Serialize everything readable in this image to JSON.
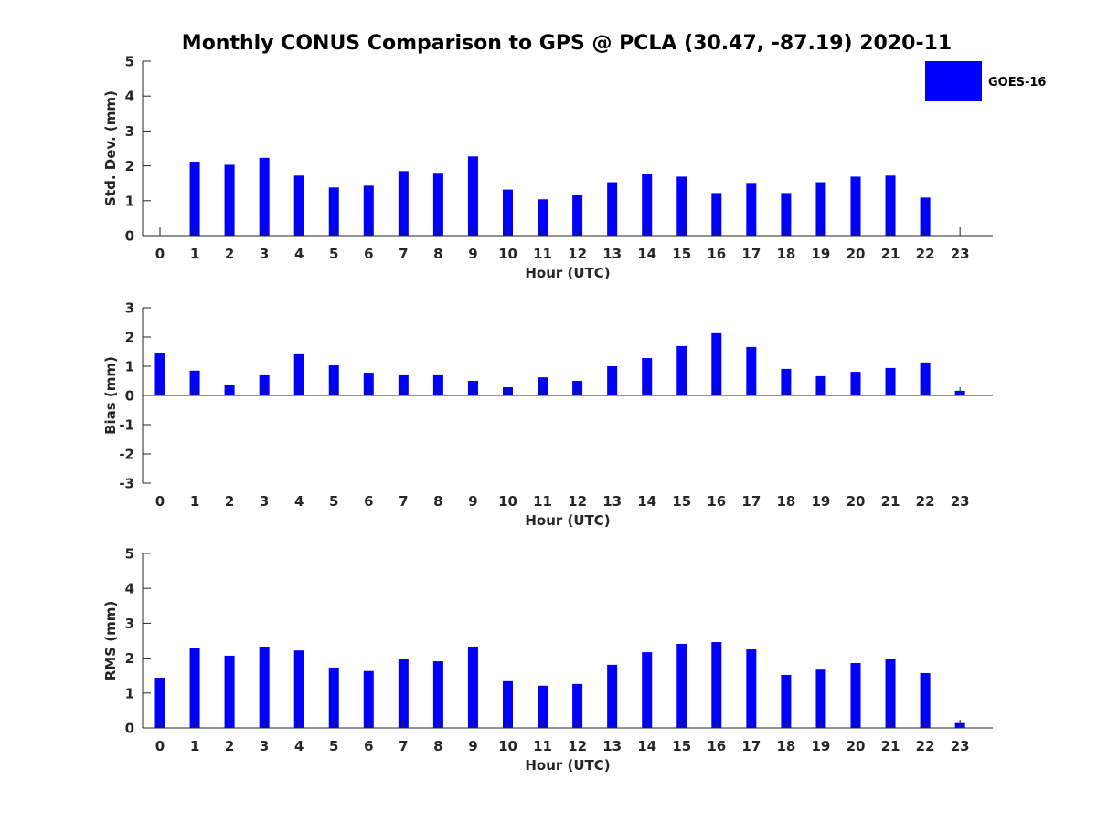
{
  "title": "Monthly CONUS Comparison to GPS @ PCLA (30.47, -87.19) 2020-11",
  "colors": {
    "bar": "#0000ff",
    "axis": "#262626"
  },
  "legend": {
    "label": "GOES-16",
    "placement": "top-right"
  },
  "chart_data": [
    {
      "type": "bar",
      "title": "Monthly CONUS Comparison to GPS @ PCLA (30.47, -87.19) 2020-11",
      "xlabel": "Hour (UTC)",
      "ylabel": "Std. Dev. (mm)",
      "ylim": [
        0,
        5
      ],
      "yticks": [
        0,
        1,
        2,
        3,
        4,
        5
      ],
      "categories": [
        "0",
        "1",
        "2",
        "3",
        "4",
        "5",
        "6",
        "7",
        "8",
        "9",
        "10",
        "11",
        "12",
        "13",
        "14",
        "15",
        "16",
        "17",
        "18",
        "19",
        "20",
        "21",
        "22",
        "23"
      ],
      "series": [
        {
          "name": "GOES-16",
          "values": [
            null,
            2.12,
            2.03,
            2.23,
            1.72,
            1.38,
            1.43,
            1.85,
            1.8,
            2.27,
            1.32,
            1.04,
            1.17,
            1.53,
            1.77,
            1.69,
            1.22,
            1.51,
            1.22,
            1.53,
            1.69,
            1.72,
            1.09,
            null
          ]
        }
      ]
    },
    {
      "type": "bar",
      "xlabel": "Hour (UTC)",
      "ylabel": "Bias (mm)",
      "ylim": [
        -3,
        3
      ],
      "yticks": [
        -3,
        -2,
        -1,
        0,
        1,
        2,
        3
      ],
      "categories": [
        "0",
        "1",
        "2",
        "3",
        "4",
        "5",
        "6",
        "7",
        "8",
        "9",
        "10",
        "11",
        "12",
        "13",
        "14",
        "15",
        "16",
        "17",
        "18",
        "19",
        "20",
        "21",
        "22",
        "23"
      ],
      "series": [
        {
          "name": "GOES-16",
          "values": [
            1.44,
            0.85,
            0.37,
            0.69,
            1.41,
            1.03,
            0.78,
            0.69,
            0.69,
            0.5,
            0.28,
            0.62,
            0.5,
            1.0,
            1.28,
            1.69,
            2.13,
            1.66,
            0.91,
            0.66,
            0.81,
            0.94,
            1.13,
            0.16
          ]
        }
      ]
    },
    {
      "type": "bar",
      "xlabel": "Hour (UTC)",
      "ylabel": "RMS (mm)",
      "ylim": [
        0,
        5
      ],
      "yticks": [
        0,
        1,
        2,
        3,
        4,
        5
      ],
      "categories": [
        "0",
        "1",
        "2",
        "3",
        "4",
        "5",
        "6",
        "7",
        "8",
        "9",
        "10",
        "11",
        "12",
        "13",
        "14",
        "15",
        "16",
        "17",
        "18",
        "19",
        "20",
        "21",
        "22",
        "23"
      ],
      "series": [
        {
          "name": "GOES-16",
          "values": [
            1.44,
            2.28,
            2.07,
            2.33,
            2.22,
            1.73,
            1.63,
            1.97,
            1.91,
            2.33,
            1.34,
            1.21,
            1.26,
            1.81,
            2.17,
            2.41,
            2.46,
            2.25,
            1.52,
            1.67,
            1.86,
            1.97,
            1.57,
            0.14
          ]
        }
      ]
    }
  ]
}
